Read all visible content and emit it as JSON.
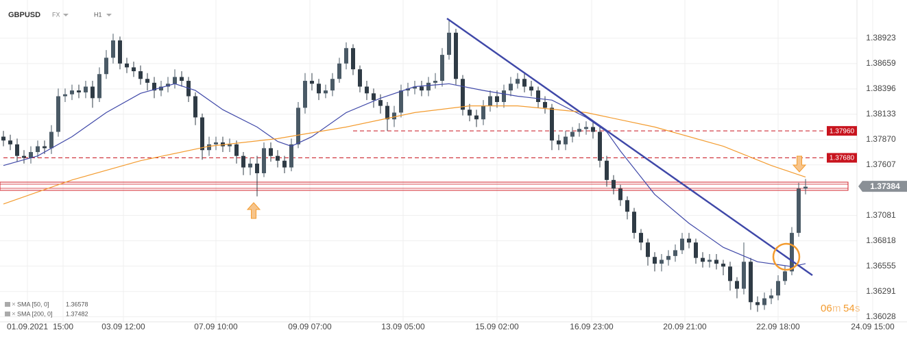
{
  "header": {
    "symbol": "GBPUSD",
    "market": "FX",
    "interval": "H1"
  },
  "chart_data": {
    "type": "candlestick",
    "up_color": "#4a5a66",
    "down_color": "#2f3b45",
    "xlim": [
      -0.5,
      131.8
    ],
    "ylim": [
      1.3599,
      1.3932
    ],
    "grid": true,
    "xticks": [
      {
        "value": 3.5,
        "label": "01.09.2021"
      },
      {
        "value": 8.7,
        "label": "15:00"
      },
      {
        "value": 17.5,
        "label": "03.09 12:00"
      },
      {
        "value": 31,
        "label": "07.09 10:00"
      },
      {
        "value": 44.7,
        "label": "09.09 07:00"
      },
      {
        "value": 58.3,
        "label": "13.09 05:00"
      },
      {
        "value": 72,
        "label": "15.09 02:00"
      },
      {
        "value": 85.8,
        "label": "16.09 23:00"
      },
      {
        "value": 99.4,
        "label": "20.09 21:00"
      },
      {
        "value": 113,
        "label": "22.09 18:00"
      },
      {
        "value": 126.8,
        "label": "24.09 15:00"
      }
    ],
    "yticks": [
      1.38923,
      1.38659,
      1.38396,
      1.38133,
      {
        "value": 1.3787,
        "label": "1.37870"
      },
      1.37607,
      1.37081,
      1.36818,
      1.36555,
      1.36291,
      1.36028
    ],
    "x": [
      0,
      1,
      2,
      3,
      4,
      5,
      6,
      7,
      8,
      9,
      10,
      11,
      12,
      13,
      14,
      15,
      16,
      17,
      18,
      19,
      20,
      21,
      22,
      23,
      24,
      25,
      26,
      27,
      28,
      29,
      30,
      31,
      32,
      33,
      34,
      35,
      36,
      37,
      38,
      39,
      40,
      41,
      42,
      43,
      44,
      45,
      46,
      47,
      48,
      49,
      50,
      51,
      52,
      53,
      54,
      55,
      56,
      57,
      58,
      59,
      60,
      61,
      62,
      63,
      64,
      65,
      66,
      67,
      68,
      69,
      70,
      71,
      72,
      73,
      74,
      75,
      76,
      77,
      78,
      79,
      80,
      81,
      82,
      83,
      84,
      85,
      86,
      87,
      88,
      89,
      90,
      91,
      92,
      93,
      94,
      95,
      96,
      97,
      98,
      99,
      100,
      101,
      102,
      103,
      104,
      105,
      106,
      107,
      108,
      109,
      110,
      111,
      112,
      113,
      114,
      115,
      116,
      117
    ],
    "open": [
      1.379,
      1.3786,
      1.3782,
      1.377,
      1.3768,
      1.3774,
      1.378,
      1.3778,
      1.3795,
      1.3832,
      1.3834,
      1.3838,
      1.3836,
      1.3842,
      1.383,
      1.3855,
      1.3872,
      1.389,
      1.3866,
      1.3862,
      1.3858,
      1.385,
      1.3846,
      1.3838,
      1.3842,
      1.3845,
      1.3852,
      1.3848,
      1.3832,
      1.381,
      1.3776,
      1.3782,
      1.3784,
      1.378,
      1.3782,
      1.377,
      1.3758,
      1.3762,
      1.3752,
      1.3778,
      1.377,
      1.3765,
      1.3758,
      1.3782,
      1.382,
      1.3848,
      1.3845,
      1.3835,
      1.3838,
      1.385,
      1.3866,
      1.3882,
      1.386,
      1.3842,
      1.3835,
      1.3828,
      1.3822,
      1.3808,
      1.3815,
      1.3838,
      1.384,
      1.3842,
      1.3838,
      1.3846,
      1.3848,
      1.3875,
      1.3898,
      1.385,
      1.3818,
      1.3812,
      1.3808,
      1.3822,
      1.3832,
      1.3826,
      1.3838,
      1.3845,
      1.385,
      1.3842,
      1.3838,
      1.3826,
      1.382,
      1.3786,
      1.3782,
      1.379,
      1.3795,
      1.3798,
      1.38,
      1.3795,
      1.3765,
      1.3745,
      1.3736,
      1.3724,
      1.3712,
      1.369,
      1.368,
      1.3665,
      1.3658,
      1.3662,
      1.3666,
      1.3672,
      1.3684,
      1.368,
      1.3664,
      1.366,
      1.3662,
      1.3658,
      1.3655,
      1.364,
      1.3632,
      1.366,
      1.3618,
      1.3615,
      1.3622,
      1.3625,
      1.364,
      1.365,
      1.369,
      1.3736
    ],
    "high": [
      1.3796,
      1.3792,
      1.3788,
      1.3776,
      1.378,
      1.3786,
      1.3786,
      1.3802,
      1.384,
      1.384,
      1.3844,
      1.3844,
      1.3848,
      1.3848,
      1.3862,
      1.388,
      1.3897,
      1.3894,
      1.3872,
      1.3868,
      1.3864,
      1.3856,
      1.3852,
      1.3848,
      1.3852,
      1.386,
      1.3858,
      1.3852,
      1.3836,
      1.3814,
      1.379,
      1.379,
      1.379,
      1.3788,
      1.3786,
      1.3774,
      1.3768,
      1.377,
      1.3784,
      1.3784,
      1.3776,
      1.377,
      1.3788,
      1.3826,
      1.3856,
      1.3856,
      1.385,
      1.3844,
      1.3856,
      1.3872,
      1.3888,
      1.3886,
      1.3864,
      1.3848,
      1.384,
      1.3834,
      1.3826,
      1.3822,
      1.3844,
      1.3846,
      1.3848,
      1.3848,
      1.3852,
      1.3856,
      1.3882,
      1.3911,
      1.3902,
      1.3854,
      1.3824,
      1.3818,
      1.3828,
      1.3838,
      1.3838,
      1.3844,
      1.3852,
      1.3856,
      1.3856,
      1.3848,
      1.3842,
      1.3832,
      1.3824,
      1.3792,
      1.3796,
      1.38,
      1.3804,
      1.3806,
      1.3806,
      1.38,
      1.377,
      1.375,
      1.374,
      1.3728,
      1.3716,
      1.3694,
      1.3684,
      1.367,
      1.3668,
      1.3672,
      1.3678,
      1.369,
      1.369,
      1.3684,
      1.367,
      1.3668,
      1.3668,
      1.3662,
      1.366,
      1.3644,
      1.368,
      1.3664,
      1.3624,
      1.3628,
      1.3632,
      1.3646,
      1.3656,
      1.3696,
      1.3742,
      1.3746
    ],
    "low": [
      1.378,
      1.3776,
      1.3764,
      1.3762,
      1.3762,
      1.3768,
      1.3772,
      1.3772,
      1.379,
      1.3826,
      1.3828,
      1.383,
      1.383,
      1.382,
      1.3826,
      1.385,
      1.3866,
      1.386,
      1.3856,
      1.3852,
      1.3844,
      1.3838,
      1.383,
      1.3832,
      1.3836,
      1.384,
      1.3842,
      1.3826,
      1.3802,
      1.3766,
      1.377,
      1.3776,
      1.3774,
      1.3774,
      1.3762,
      1.375,
      1.375,
      1.3728,
      1.3748,
      1.3764,
      1.3758,
      1.3752,
      1.3754,
      1.3778,
      1.3814,
      1.3838,
      1.3828,
      1.383,
      1.3832,
      1.3846,
      1.386,
      1.3854,
      1.3836,
      1.3828,
      1.382,
      1.3814,
      1.3796,
      1.38,
      1.381,
      1.3832,
      1.3834,
      1.3832,
      1.3832,
      1.384,
      1.3842,
      1.387,
      1.3844,
      1.3812,
      1.3806,
      1.38,
      1.3802,
      1.3816,
      1.382,
      1.382,
      1.3832,
      1.384,
      1.3836,
      1.3832,
      1.382,
      1.3814,
      1.3776,
      1.3776,
      1.3776,
      1.3784,
      1.379,
      1.3792,
      1.3788,
      1.3758,
      1.3738,
      1.373,
      1.3718,
      1.3704,
      1.3684,
      1.3672,
      1.3656,
      1.365,
      1.365,
      1.3656,
      1.366,
      1.3668,
      1.3674,
      1.3658,
      1.3654,
      1.3654,
      1.3652,
      1.3646,
      1.363,
      1.3622,
      1.3626,
      1.361,
      1.3608,
      1.361,
      1.3616,
      1.362,
      1.3636,
      1.3646,
      1.3686,
      1.373
    ],
    "close": [
      1.3786,
      1.3782,
      1.377,
      1.3768,
      1.3774,
      1.378,
      1.3778,
      1.3795,
      1.3832,
      1.3834,
      1.3838,
      1.3836,
      1.3842,
      1.383,
      1.3855,
      1.3872,
      1.389,
      1.3866,
      1.3862,
      1.3858,
      1.385,
      1.3846,
      1.3838,
      1.3842,
      1.3845,
      1.3852,
      1.3848,
      1.3832,
      1.381,
      1.3776,
      1.3782,
      1.3784,
      1.378,
      1.3782,
      1.377,
      1.3758,
      1.3762,
      1.3752,
      1.3778,
      1.377,
      1.3765,
      1.3758,
      1.3782,
      1.382,
      1.3848,
      1.3845,
      1.3835,
      1.3838,
      1.385,
      1.3866,
      1.3882,
      1.386,
      1.3842,
      1.3835,
      1.3828,
      1.3822,
      1.3808,
      1.3815,
      1.3838,
      1.384,
      1.3842,
      1.3838,
      1.3846,
      1.3848,
      1.3875,
      1.3898,
      1.385,
      1.3818,
      1.3812,
      1.3808,
      1.3822,
      1.3832,
      1.3826,
      1.3838,
      1.3845,
      1.385,
      1.3842,
      1.3838,
      1.3826,
      1.382,
      1.3786,
      1.3782,
      1.379,
      1.3795,
      1.3798,
      1.38,
      1.3795,
      1.3765,
      1.3745,
      1.3736,
      1.3724,
      1.3712,
      1.369,
      1.368,
      1.3665,
      1.3658,
      1.3662,
      1.3666,
      1.3672,
      1.3684,
      1.368,
      1.3664,
      1.366,
      1.3662,
      1.3658,
      1.3655,
      1.364,
      1.3632,
      1.366,
      1.3618,
      1.3615,
      1.3622,
      1.3625,
      1.364,
      1.365,
      1.369,
      1.3736,
      1.3738
    ],
    "overlays": [
      {
        "name": "SMA [50, 0]",
        "last": 1.36578,
        "color": "#3f48a8",
        "x": [
          0,
          5,
          10,
          15,
          20,
          25,
          28,
          32,
          37,
          40,
          42,
          45,
          50,
          55,
          60,
          65,
          70,
          75,
          80,
          85,
          88,
          90,
          95,
          100,
          105,
          110,
          115,
          117
        ],
        "values": [
          1.376,
          1.377,
          1.379,
          1.3815,
          1.3835,
          1.3845,
          1.3838,
          1.3818,
          1.38,
          1.3785,
          1.378,
          1.379,
          1.3815,
          1.383,
          1.3842,
          1.3845,
          1.3838,
          1.3832,
          1.3828,
          1.381,
          1.3795,
          1.3775,
          1.373,
          1.37,
          1.3675,
          1.366,
          1.3655,
          1.3658
        ]
      },
      {
        "name": "SMA [200, 0]",
        "last": 1.37482,
        "color": "#f39b2e",
        "x": [
          0,
          10,
          20,
          30,
          40,
          50,
          60,
          68,
          75,
          85,
          95,
          105,
          112,
          117
        ],
        "values": [
          1.372,
          1.3745,
          1.3765,
          1.378,
          1.3788,
          1.38,
          1.3815,
          1.3822,
          1.3822,
          1.3815,
          1.38,
          1.378,
          1.376,
          1.3748
        ]
      }
    ],
    "levels": [
      {
        "value": 1.3796,
        "label": "1.37960",
        "from": 51,
        "color": "#c8141e"
      },
      {
        "value": 1.3768,
        "label": "1.37680",
        "from": 0,
        "color": "#c8141e"
      }
    ],
    "current_price": {
      "value": 1.37384,
      "label": "1.37384"
    },
    "countdown": [
      "06",
      "m",
      "54",
      "s"
    ]
  }
}
